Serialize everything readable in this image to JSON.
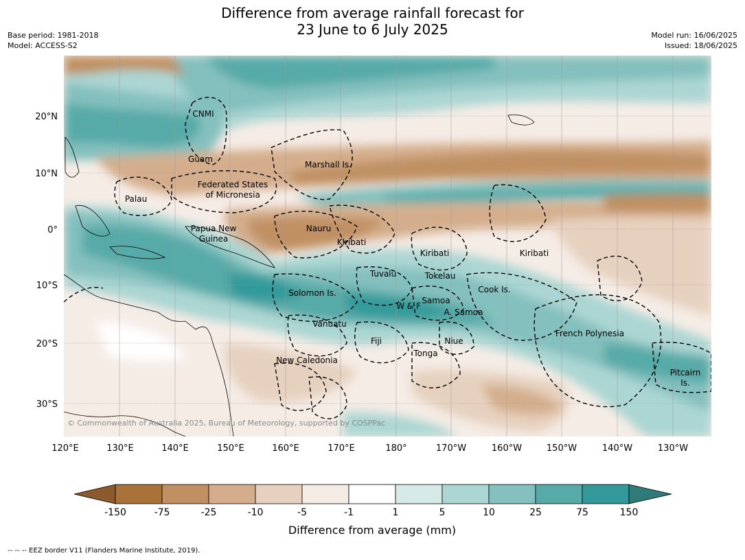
{
  "header": {
    "title_line1": "Difference from average rainfall forecast for",
    "title_line2": "23 June to 6 July 2025",
    "base_period": "Base period: 1981-2018",
    "model": "Model: ACCESS-S2",
    "model_run": "Model run: 16/06/2025",
    "issued": "Issued: 18/06/2025"
  },
  "map": {
    "lon_labels": [
      "120°E",
      "130°E",
      "140°E",
      "150°E",
      "160°E",
      "170°E",
      "180°",
      "170°W",
      "160°W",
      "150°W",
      "140°W",
      "130°W"
    ],
    "lat_labels": [
      "20°N",
      "10°N",
      "0°",
      "10°S",
      "20°S",
      "30°S"
    ],
    "regions": [
      "CNMI",
      "Guam",
      "Marshall Is.",
      "Federated States",
      "of Micronesia",
      "Palau",
      "Papua New",
      "Guinea",
      "Nauru",
      "Kiribati",
      "Kiribati",
      "Kiribati",
      "Tuvalu",
      "Tokelau",
      "Cook Is.",
      "Solomon Is.",
      "Samoa",
      "W & F",
      "A. Samoa",
      "Vanuatu",
      "Fiji",
      "Niue",
      "Tonga",
      "French Polynesia",
      "New Caledonia",
      "Pitcairn",
      "Is."
    ],
    "credit": "© Commonwealth of Australia 2025, Bureau of Meteorology, supported by COSPPac"
  },
  "colorbar": {
    "ticks": [
      "-150",
      "-75",
      "-25",
      "-10",
      "-5",
      "-1",
      "1",
      "5",
      "10",
      "25",
      "75",
      "150"
    ],
    "colors": [
      "#8c5a2c",
      "#a87238",
      "#c09062",
      "#d4ae8c",
      "#e6d1bf",
      "#f5ece6",
      "#ffffff",
      "#d6ebe8",
      "#acd6d3",
      "#84c0be",
      "#56aaa8",
      "#33999a",
      "#2e7b7a"
    ],
    "label": "Difference from average (mm)"
  },
  "footer": {
    "eez_note": "-- -- -- EEZ border V11 (Flanders Marine Institute, 2019)."
  }
}
